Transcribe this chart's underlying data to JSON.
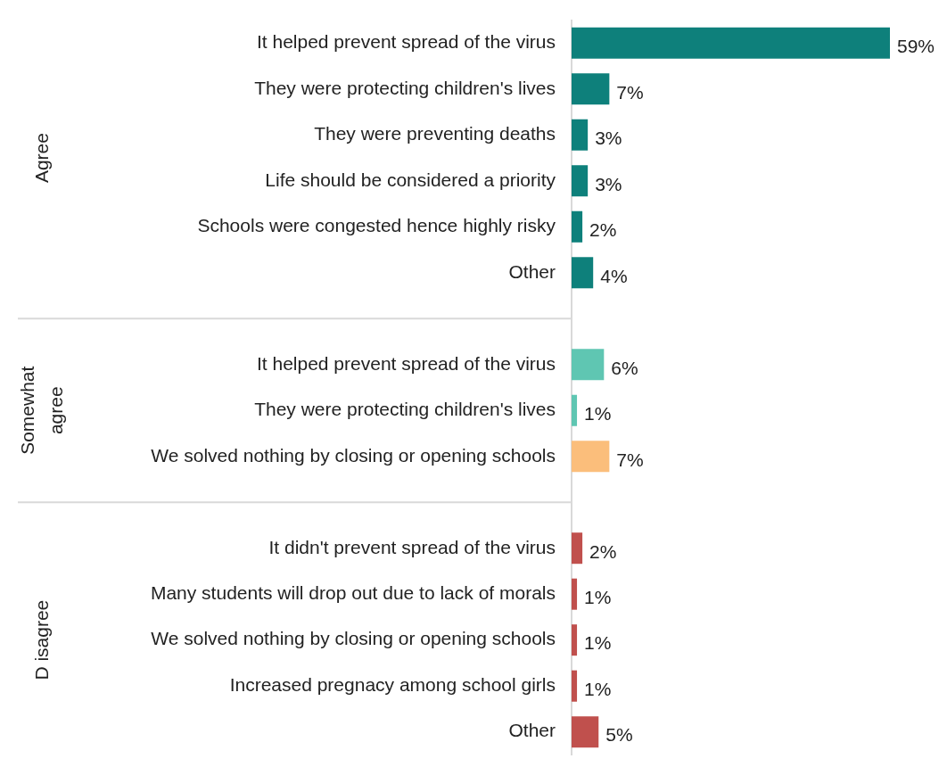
{
  "chart_data": {
    "type": "bar",
    "annotations": [
      "Agree",
      "Somewhat agree",
      "D isagree"
    ],
    "orientation": "horizontal",
    "tick_labels": "y",
    "grid": false,
    "legend": false,
    "data_labels": true,
    "categories": [
      "It helped prevent spread of the virus",
      "They were protecting children's lives",
      "They were preventing deaths",
      "Life should be considered a priority",
      "Schools were congested hence highly risky",
      "Other",
      null,
      "It helped prevent spread of the virus",
      "They were protecting children's lives",
      "We solved nothing by closing or opening schools",
      null,
      "It didn't prevent spread of the virus",
      "Many students will drop out due to lack of morals",
      "We solved nothing by closing or opening schools",
      "Increased pregnacy among school girls",
      "Other"
    ],
    "series": [
      {
        "color": "#0e807b",
        "values": [
          59,
          7,
          3,
          3,
          2,
          4,
          null,
          null,
          null,
          null,
          null,
          null,
          null,
          null,
          null,
          null
        ],
        "value_labels": [
          "59%",
          "7%",
          "3%",
          "3%",
          "2%",
          "4%",
          null,
          null,
          null,
          null,
          null,
          null,
          null,
          null,
          null,
          null
        ]
      },
      {
        "colors": [
          null,
          null,
          null,
          null,
          null,
          null,
          null,
          "#5fc6b2",
          "#5fc6b2",
          "#fbbe7b",
          null,
          null,
          null,
          null,
          null,
          null
        ],
        "values": [
          null,
          null,
          null,
          null,
          null,
          null,
          null,
          6,
          1,
          7,
          null,
          null,
          null,
          null,
          null,
          null
        ],
        "value_labels": [
          null,
          null,
          null,
          null,
          null,
          null,
          null,
          "6%",
          "1%",
          "7%",
          null,
          null,
          null,
          null,
          null,
          null
        ]
      },
      {
        "color": "#c0504d",
        "values": [
          null,
          null,
          null,
          null,
          null,
          null,
          null,
          null,
          null,
          null,
          null,
          2,
          1,
          1,
          1,
          5
        ],
        "value_labels": [
          null,
          null,
          null,
          null,
          null,
          null,
          null,
          null,
          null,
          null,
          null,
          "2%",
          "1%",
          "1%",
          "1%",
          "5%"
        ]
      }
    ]
  }
}
